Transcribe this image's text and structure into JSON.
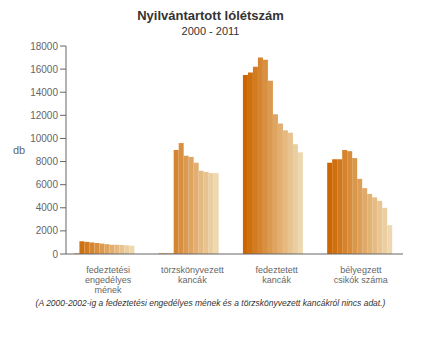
{
  "chart_data": {
    "type": "bar",
    "title": "Nyilvántartott lólétszám",
    "subtitle": "2000 - 2011",
    "ylabel": "db",
    "footnote": "(A 2000-2002-ig a fedeztetési engedélyes mének és a törzskönyvezett kancákról nincs adat.)",
    "categories": [
      "fedeztetési\nengedélyes\nmének",
      "törzskönyvezett\nkancák",
      "fedeztetett\nkancák",
      "bélyegzett\ncsikók száma"
    ],
    "ylim": [
      0,
      18000
    ],
    "yticks": [
      0,
      2000,
      4000,
      6000,
      8000,
      10000,
      12000,
      14000,
      16000,
      18000
    ],
    "grid": false,
    "series": [
      {
        "values": [
          50,
          50,
          15500,
          7900
        ],
        "colors": [
          "#CC6600",
          "#CC6600",
          "#CC6600",
          "#CC6600"
        ]
      },
      {
        "values": [
          1100,
          50,
          15700,
          8200
        ],
        "colors": [
          "#CF7010",
          "#CF7010",
          "#CF7010",
          "#CF700F"
        ]
      },
      {
        "values": [
          1050,
          50,
          16200,
          8200
        ],
        "colors": [
          "#D27B20",
          "#D27B20",
          "#D27B20",
          "#D2791D"
        ]
      },
      {
        "values": [
          1000,
          9000,
          17000,
          9000
        ],
        "colors": [
          "#D58530",
          "#D58530",
          "#D58530",
          "#D5832C"
        ]
      },
      {
        "values": [
          950,
          9600,
          16800,
          8900
        ],
        "colors": [
          "#D88F40",
          "#D88F40",
          "#D88F40",
          "#D78C3B"
        ]
      },
      {
        "values": [
          900,
          8500,
          15000,
          8300
        ],
        "colors": [
          "#DB9A50",
          "#DB9A50",
          "#DB9A50",
          "#DA9649"
        ]
      },
      {
        "values": [
          850,
          8400,
          12100,
          6500
        ],
        "colors": [
          "#DFA460",
          "#DFA460",
          "#DFA460",
          "#DD9F58"
        ]
      },
      {
        "values": [
          800,
          7900,
          11300,
          5700
        ],
        "colors": [
          "#E2AF70",
          "#E2AF70",
          "#E2AF70",
          "#E0A967"
        ]
      },
      {
        "values": [
          800,
          7200,
          10700,
          5200
        ],
        "colors": [
          "#E5B980",
          "#E5B980",
          "#E5B980",
          "#E3B275"
        ]
      },
      {
        "values": [
          780,
          7100,
          10500,
          4900
        ],
        "colors": [
          "#E8C390",
          "#E8C390",
          "#E8C390",
          "#E6BC84"
        ]
      },
      {
        "values": [
          750,
          7000,
          9500,
          4600
        ],
        "colors": [
          "#EBCEA0",
          "#EBCEA0",
          "#EBCEA0",
          "#E8C593"
        ]
      },
      {
        "values": [
          720,
          7000,
          8800,
          4000
        ],
        "colors": [
          "#EED8B0",
          "#EED8B0",
          "#EED8B0",
          "#EBCFA1"
        ]
      },
      {
        "values": [
          null,
          null,
          null,
          2500
        ],
        "colors": [
          null,
          null,
          null,
          "#EED8B0"
        ]
      }
    ]
  }
}
